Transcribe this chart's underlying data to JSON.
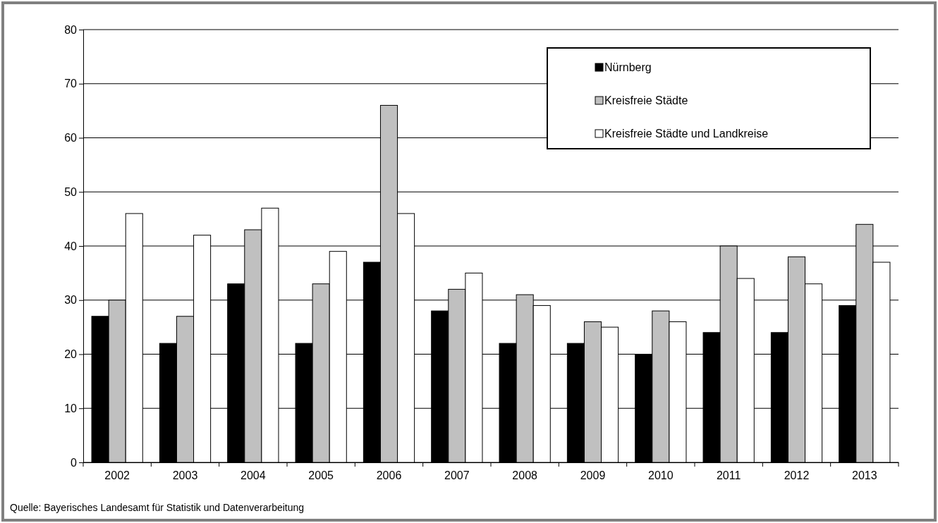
{
  "chart_data": {
    "type": "bar",
    "categories": [
      "2002",
      "2003",
      "2004",
      "2005",
      "2006",
      "2007",
      "2008",
      "2009",
      "2010",
      "2011",
      "2012",
      "2013"
    ],
    "series": [
      {
        "name": "Nürnberg",
        "color": "#000000",
        "values": [
          27,
          22,
          33,
          22,
          37,
          28,
          22,
          22,
          20,
          24,
          24,
          29
        ]
      },
      {
        "name": "Kreisfreie Städte",
        "color": "#c0c0c0",
        "values": [
          30,
          27,
          43,
          33,
          66,
          32,
          31,
          26,
          28,
          40,
          38,
          44
        ]
      },
      {
        "name": "Kreisfreie Städte und Landkreise",
        "color": "#ffffff",
        "values": [
          46,
          42,
          47,
          39,
          46,
          35,
          29,
          25,
          26,
          34,
          33,
          37
        ]
      }
    ],
    "ylim": [
      0,
      80
    ],
    "yticks": [
      0,
      10,
      20,
      30,
      40,
      50,
      60,
      70,
      80
    ],
    "grid": "y",
    "legend": "top right",
    "annotations": [
      "Quelle: Bayerisches Landesamt für Statistik und Datenverarbeitung"
    ]
  }
}
